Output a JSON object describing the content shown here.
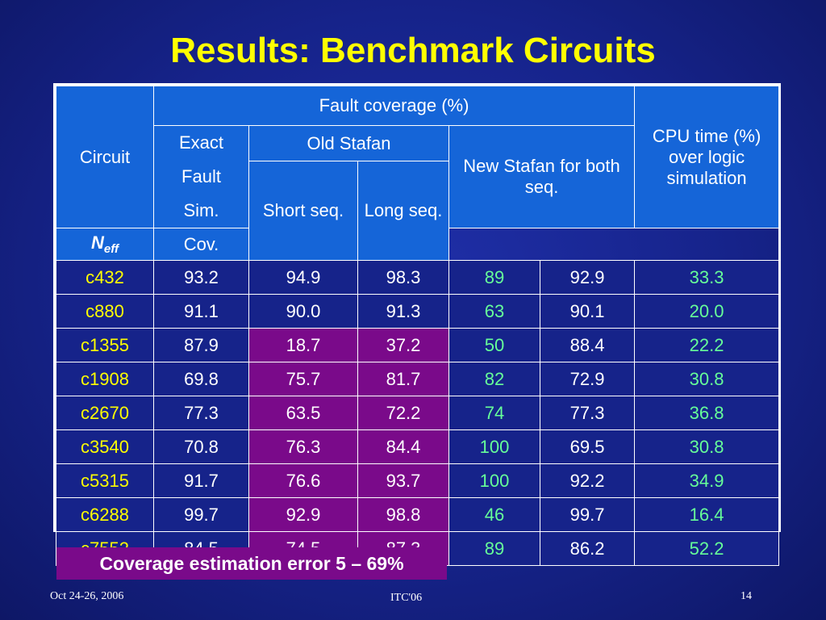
{
  "title": "Results: Benchmark Circuits",
  "headers": {
    "circuit": "Circuit",
    "fault_coverage": "Fault coverage (%)",
    "cpu_time": "CPU time (%) over logic simulation",
    "exact_lines": [
      "Exact",
      "Fault",
      "Sim."
    ],
    "old_stafan": "Old Stafan",
    "new_stafan": "New Stafan for both seq.",
    "short_seq": "Short seq.",
    "long_seq": "Long seq.",
    "neff_main": "N",
    "neff_sub": "eff",
    "cov": "Cov."
  },
  "rows": [
    {
      "circuit": "c432",
      "exact": "93.2",
      "short": "94.9",
      "long": "98.3",
      "neff": "89",
      "cov": "92.9",
      "cpu": "33.3"
    },
    {
      "circuit": "c880",
      "exact": "91.1",
      "short": "90.0",
      "long": "91.3",
      "neff": "63",
      "cov": "90.1",
      "cpu": "20.0"
    },
    {
      "circuit": "c1355",
      "exact": "87.9",
      "short": "18.7",
      "long": "37.2",
      "neff": "50",
      "cov": "88.4",
      "cpu": "22.2"
    },
    {
      "circuit": "c1908",
      "exact": "69.8",
      "short": "75.7",
      "long": "81.7",
      "neff": "82",
      "cov": "72.9",
      "cpu": "30.8"
    },
    {
      "circuit": "c2670",
      "exact": "77.3",
      "short": "63.5",
      "long": "72.2",
      "neff": "74",
      "cov": "77.3",
      "cpu": "36.8"
    },
    {
      "circuit": "c3540",
      "exact": "70.8",
      "short": "76.3",
      "long": "84.4",
      "neff": "100",
      "cov": "69.5",
      "cpu": "30.8"
    },
    {
      "circuit": "c5315",
      "exact": "91.7",
      "short": "76.6",
      "long": "93.7",
      "neff": "100",
      "cov": "92.2",
      "cpu": "34.9"
    },
    {
      "circuit": "c6288",
      "exact": "99.7",
      "short": "92.9",
      "long": "98.8",
      "neff": "46",
      "cov": "99.7",
      "cpu": "16.4"
    },
    {
      "circuit": "c7552",
      "exact": "84.5",
      "short": "74.5",
      "long": "87.3",
      "neff": "89",
      "cov": "86.2",
      "cpu": "52.2"
    }
  ],
  "note": "Coverage estimation error 5 – 69%",
  "footer": {
    "date": "Oct 24-26, 2006",
    "conference": "ITC'06",
    "page": "14"
  },
  "colors": {
    "background": "#16238a",
    "header_fill": "#1565d8",
    "highlight_fill": "#7a0a8a",
    "title": "#ffff00",
    "circuit_text": "#ffff00",
    "new_stafan_text": "#66ff99"
  }
}
